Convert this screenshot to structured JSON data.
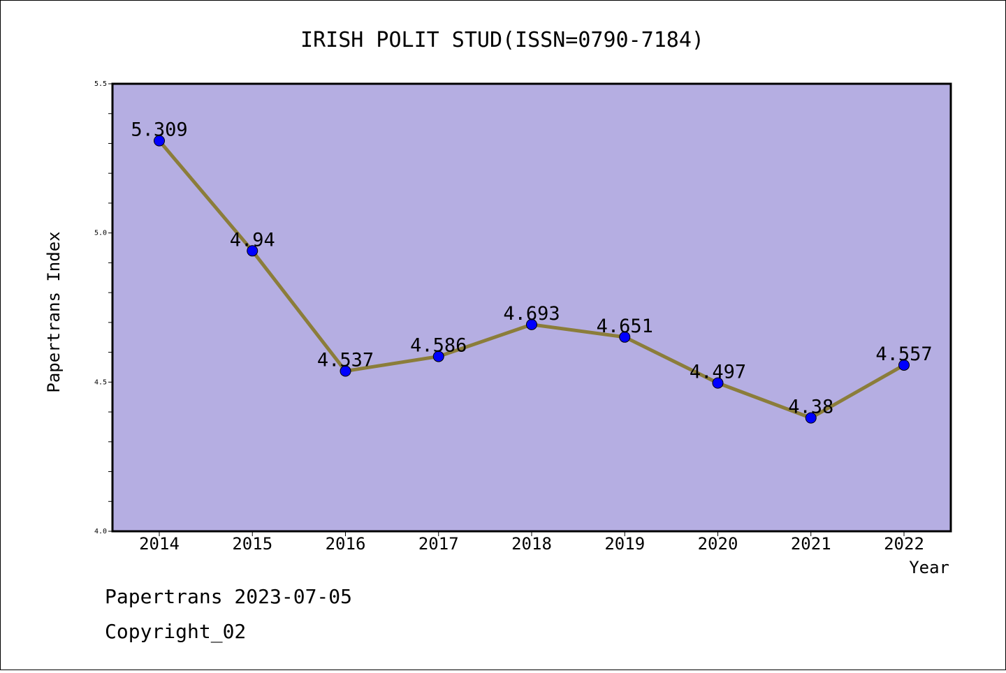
{
  "chart_data": {
    "type": "line",
    "title": "IRISH POLIT STUD(ISSN=0790-7184)",
    "xlabel": "Year",
    "ylabel": "Papertrans Index",
    "categories": [
      "2014",
      "2015",
      "2016",
      "2017",
      "2018",
      "2019",
      "2020",
      "2021",
      "2022"
    ],
    "values": [
      5.309,
      4.94,
      4.537,
      4.586,
      4.693,
      4.651,
      4.497,
      4.38,
      4.557
    ],
    "data_labels": [
      "5.309",
      "4.94",
      "4.537",
      "4.586",
      "4.693",
      "4.651",
      "4.497",
      "4.38",
      "4.557"
    ],
    "ylim": [
      4.0,
      5.5
    ],
    "yticks": [
      4.0,
      4.5,
      5.0,
      5.5
    ],
    "ytick_labels": [
      "4.0",
      "4.5",
      "5.0",
      "5.5"
    ],
    "grid": false,
    "colors": {
      "plot_background": "#b5aee2",
      "line": "#8b7d3a",
      "marker": "#0000ff"
    }
  },
  "footer": {
    "line1": "Papertrans 2023-07-05",
    "line2": "Copyright_02"
  }
}
